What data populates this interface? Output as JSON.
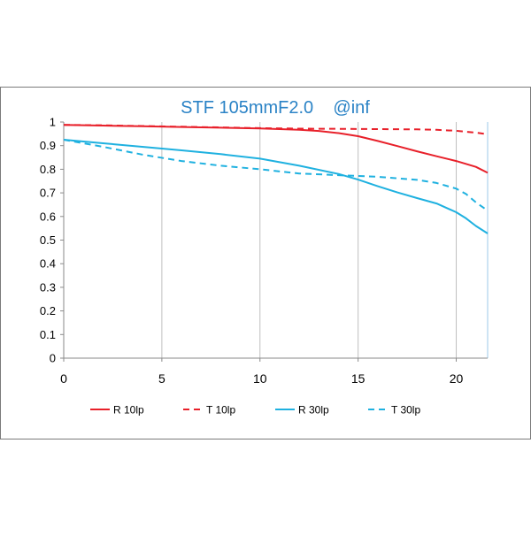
{
  "chart_data": {
    "type": "line",
    "title": "STF 105mmF2.0    @inf",
    "xlabel": "",
    "ylabel": "",
    "xlim": [
      0,
      21.6
    ],
    "ylim": [
      0,
      1
    ],
    "x_ticks": [
      0,
      5,
      10,
      15,
      20
    ],
    "y_ticks": [
      0,
      0.1,
      0.2,
      0.3,
      0.4,
      0.5,
      0.6,
      0.7,
      0.8,
      0.9,
      1
    ],
    "y_tick_labels": [
      "0",
      "0.1",
      "0.2",
      "0.3",
      "0.4",
      "0.5",
      "0.6",
      "0.7",
      "0.8",
      "0.9",
      "1"
    ],
    "grid": "vertical",
    "legend_position": "bottom",
    "series": [
      {
        "name": "R 10lp",
        "color": "#e8202a",
        "dash": "solid",
        "x": [
          0,
          2,
          4,
          6,
          8,
          10,
          12,
          13,
          14,
          15,
          16,
          17,
          18,
          19,
          20,
          21,
          21.6
        ],
        "y": [
          0.988,
          0.985,
          0.982,
          0.979,
          0.976,
          0.973,
          0.967,
          0.962,
          0.953,
          0.94,
          0.92,
          0.898,
          0.876,
          0.855,
          0.835,
          0.81,
          0.785
        ]
      },
      {
        "name": "T 10lp",
        "color": "#e8202a",
        "dash": "dashed",
        "x": [
          0,
          2,
          4,
          6,
          8,
          10,
          12,
          14,
          16,
          18,
          19,
          20,
          21,
          21.6
        ],
        "y": [
          0.988,
          0.986,
          0.983,
          0.98,
          0.977,
          0.974,
          0.972,
          0.971,
          0.97,
          0.969,
          0.967,
          0.963,
          0.955,
          0.948
        ]
      },
      {
        "name": "R 30lp",
        "color": "#1fb1e0",
        "dash": "solid",
        "x": [
          0,
          2,
          4,
          6,
          8,
          10,
          12,
          14,
          15,
          16,
          17,
          18,
          19,
          20,
          20.5,
          21,
          21.6
        ],
        "y": [
          0.925,
          0.91,
          0.895,
          0.88,
          0.864,
          0.845,
          0.815,
          0.78,
          0.756,
          0.728,
          0.702,
          0.678,
          0.655,
          0.618,
          0.592,
          0.56,
          0.528
        ]
      },
      {
        "name": "T 30lp",
        "color": "#1fb1e0",
        "dash": "dashed",
        "x": [
          0,
          2,
          4,
          6,
          8,
          10,
          12,
          14,
          16,
          18,
          19,
          20,
          20.5,
          21,
          21.6
        ],
        "y": [
          0.925,
          0.895,
          0.862,
          0.835,
          0.815,
          0.8,
          0.782,
          0.775,
          0.768,
          0.755,
          0.742,
          0.718,
          0.695,
          0.66,
          0.625
        ]
      }
    ]
  }
}
